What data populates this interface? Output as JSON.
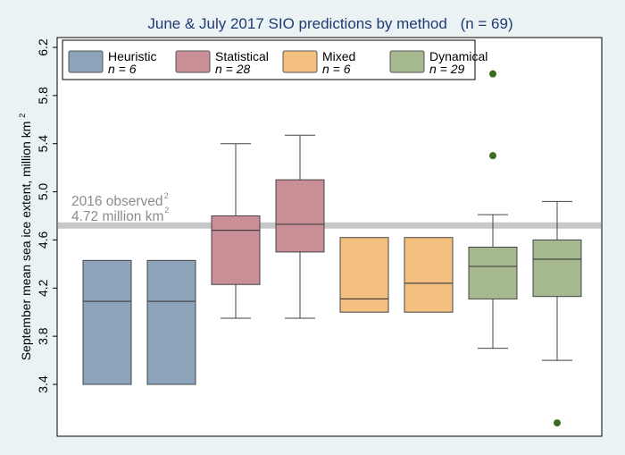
{
  "chart_data": {
    "type": "box",
    "title_main": "June & July 2017 SIO predictions by method",
    "title_n": "(n = 69)",
    "ylabel": "September mean sea ice extent, million km",
    "ylabel_sup": "2",
    "ylim": [
      3.0,
      6.3
    ],
    "yticks": [
      3.4,
      3.8,
      4.2,
      4.6,
      5.0,
      5.4,
      5.8,
      6.2
    ],
    "grid": false,
    "legend_position": "top",
    "reference_line": {
      "value": 4.72,
      "label_line1": "2016 observed",
      "label_line2": "4.72 million km",
      "label_sup": "2",
      "color": "#c8c8c8"
    },
    "legend": [
      {
        "name": "Heuristic",
        "count": "n = 6",
        "color": "#8da3b9"
      },
      {
        "name": "Statistical",
        "count": "n = 28",
        "color": "#c98e96"
      },
      {
        "name": "Mixed",
        "count": "n = 6",
        "color": "#f4c07f"
      },
      {
        "name": "Dynamical",
        "count": "n = 29",
        "color": "#a6b98e"
      }
    ],
    "boxes": [
      {
        "group": "Heuristic",
        "color": "#8da3b9",
        "whisker_low": 3.4,
        "q1": 3.4,
        "median": 4.09,
        "q3": 4.43,
        "whisker_high": 4.43,
        "outliers": []
      },
      {
        "group": "Heuristic",
        "color": "#8da3b9",
        "whisker_low": 3.4,
        "q1": 3.4,
        "median": 4.09,
        "q3": 4.43,
        "whisker_high": 4.43,
        "outliers": []
      },
      {
        "group": "Statistical",
        "color": "#c98e96",
        "whisker_low": 3.95,
        "q1": 4.23,
        "median": 4.68,
        "q3": 4.8,
        "whisker_high": 5.4,
        "outliers": []
      },
      {
        "group": "Statistical",
        "color": "#c98e96",
        "whisker_low": 3.95,
        "q1": 4.5,
        "median": 4.73,
        "q3": 5.1,
        "whisker_high": 5.47,
        "outliers": []
      },
      {
        "group": "Mixed",
        "color": "#f4c07f",
        "whisker_low": 4.0,
        "q1": 4.0,
        "median": 4.11,
        "q3": 4.62,
        "whisker_high": 4.62,
        "outliers": []
      },
      {
        "group": "Mixed",
        "color": "#f4c07f",
        "whisker_low": 4.0,
        "q1": 4.0,
        "median": 4.24,
        "q3": 4.62,
        "whisker_high": 4.62,
        "outliers": []
      },
      {
        "group": "Dynamical",
        "color": "#a6b98e",
        "whisker_low": 3.7,
        "q1": 4.11,
        "median": 4.38,
        "q3": 4.54,
        "whisker_high": 4.81,
        "outliers": [
          5.3,
          5.98
        ]
      },
      {
        "group": "Dynamical",
        "color": "#a6b98e",
        "whisker_low": 3.6,
        "q1": 4.13,
        "median": 4.44,
        "q3": 4.6,
        "whisker_high": 4.92,
        "outliers": [
          3.08
        ]
      }
    ]
  }
}
